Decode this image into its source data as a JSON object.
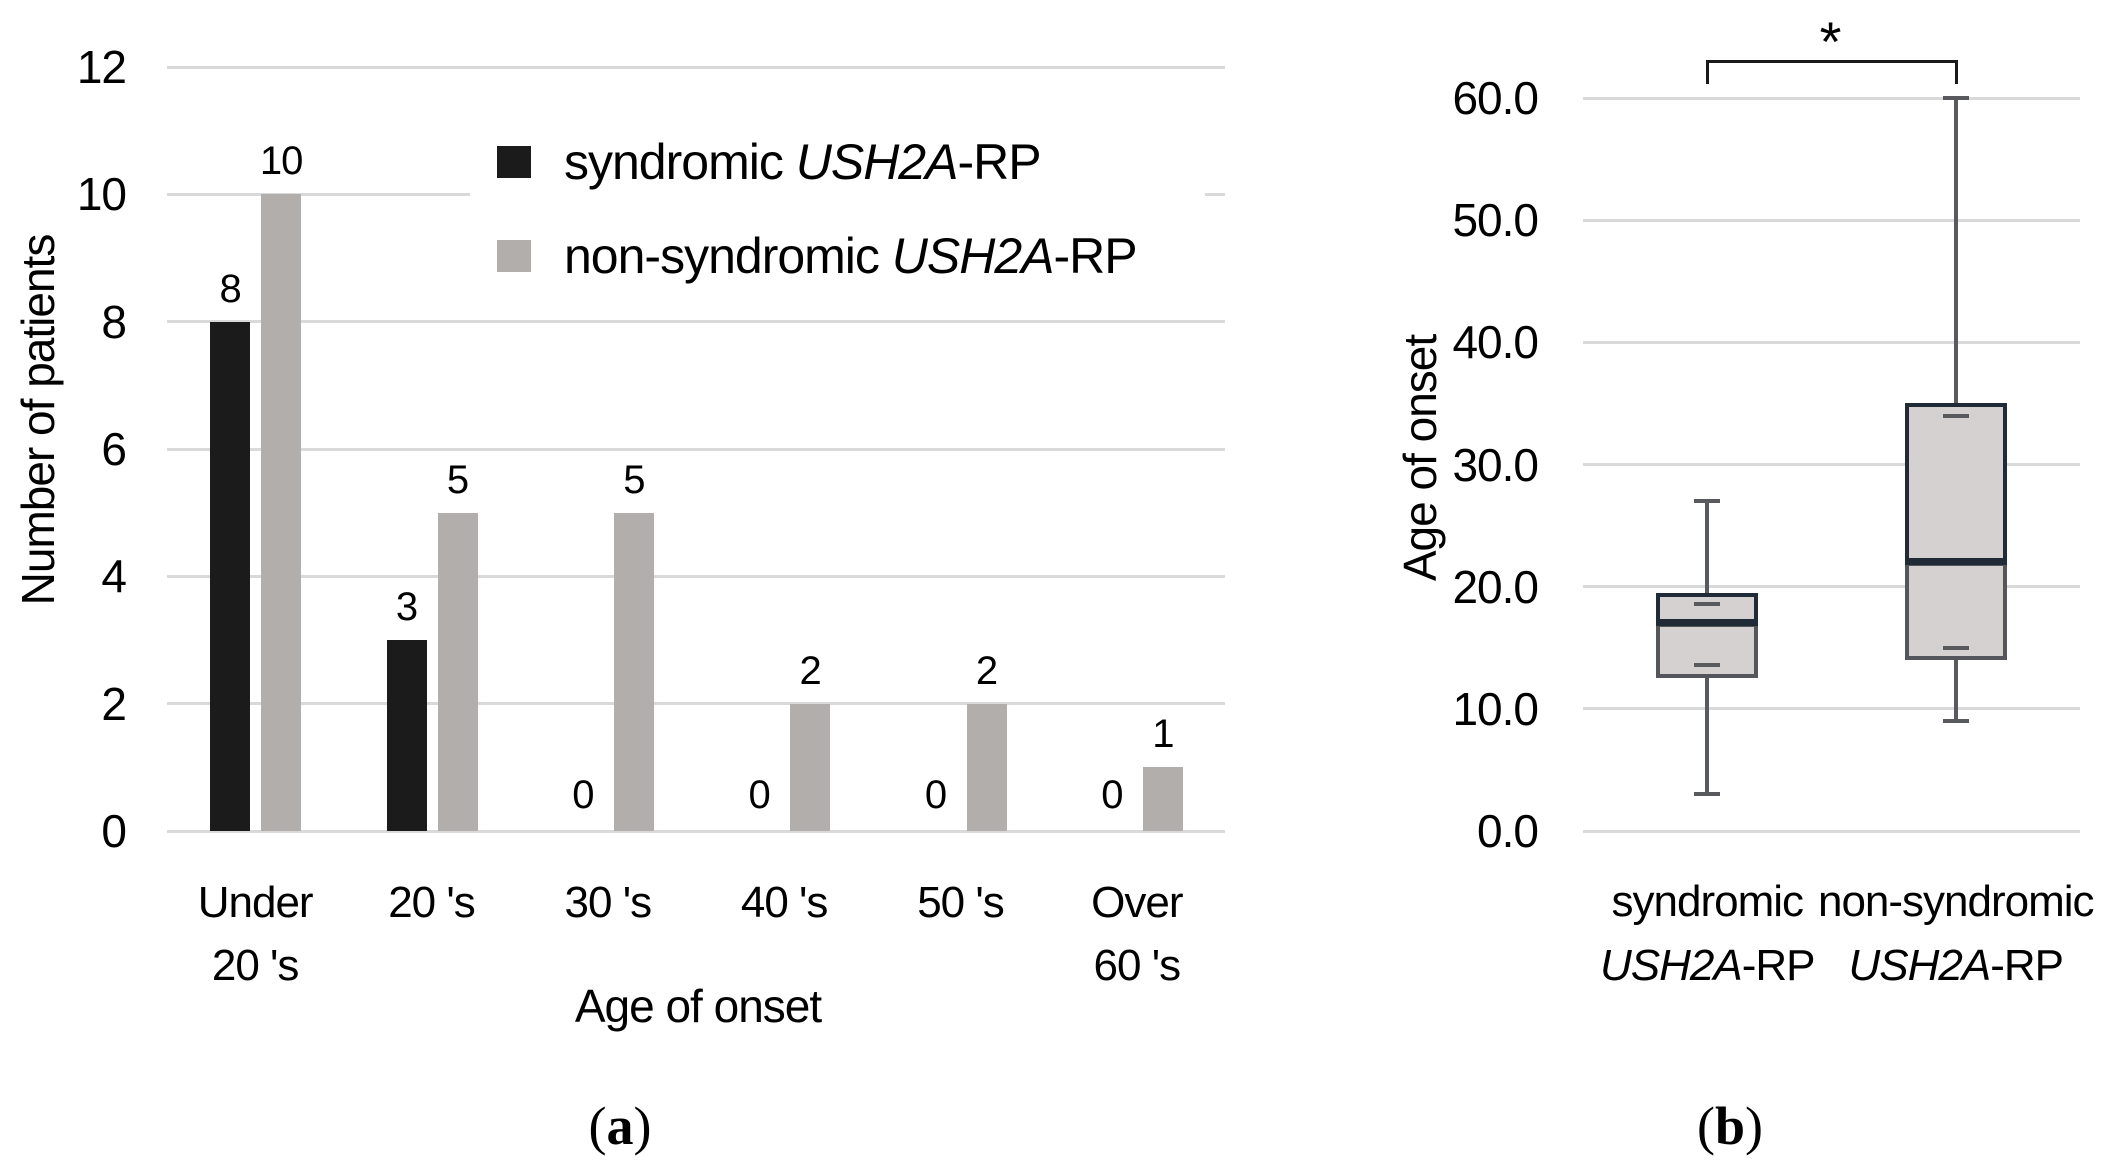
{
  "figure": {
    "panel_a_label": "(a)",
    "panel_b_label": "(b)",
    "background": "#ffffff",
    "gridline_color": "#d9d9d9",
    "text_color": "#000000"
  },
  "chart_data": [
    {
      "type": "bar",
      "panel": "a",
      "xlabel": "Age of onset",
      "ylabel": "Number of patients",
      "ylim": [
        0,
        12
      ],
      "ytick_step": 2,
      "yticks": [
        0,
        2,
        4,
        6,
        8,
        10,
        12
      ],
      "grid": true,
      "legend_position": "upper-right-inside",
      "categories": [
        "Under 20 's",
        "20 's",
        "30 's",
        "40 's",
        "50 's",
        "Over 60 's"
      ],
      "category_lines": [
        [
          "Under",
          "20 's"
        ],
        [
          "20 's"
        ],
        [
          "30 's"
        ],
        [
          "40 's"
        ],
        [
          "50 's"
        ],
        [
          "Over",
          "60 's"
        ]
      ],
      "series": [
        {
          "name": "syndromic USH2A-RP",
          "name_prefix": "syndromic ",
          "name_italic": "USH2A",
          "name_suffix": "-RP",
          "color": "#1b1b1b",
          "values": [
            8,
            3,
            0,
            0,
            0,
            0
          ]
        },
        {
          "name": "non-syndromic USH2A-RP",
          "name_prefix": "non-syndromic ",
          "name_italic": "USH2A",
          "name_suffix": "-RP",
          "color": "#b2aeac",
          "values": [
            10,
            5,
            5,
            2,
            2,
            1
          ]
        }
      ],
      "data_labels_shown": true
    },
    {
      "type": "boxplot",
      "panel": "b",
      "ylabel": "Age of onset",
      "ylim": [
        0,
        60
      ],
      "ytick_step": 10,
      "yticks": [
        "0.0",
        "10.0",
        "20.0",
        "30.0",
        "40.0",
        "50.0",
        "60.0"
      ],
      "grid": true,
      "categories": [
        "syndromic USH2A-RP",
        "non-syndromic USH2A-RP"
      ],
      "category_lines": [
        {
          "line1": "syndromic",
          "line2_italic": "USH2A",
          "line2_suffix": "-RP"
        },
        {
          "line1": "non-syndromic",
          "line2_italic": "USH2A",
          "line2_suffix": "-RP"
        }
      ],
      "boxes": [
        {
          "whisker_low": 3,
          "q1": 12.5,
          "median": 17,
          "q3": 19.5,
          "whisker_high": 27,
          "inner_cap_low": 13.6,
          "inner_cap_high": 18.6
        },
        {
          "whisker_low": 9,
          "q1": 14,
          "median": 22,
          "q3": 35,
          "whisker_high": 60,
          "inner_cap_low": 15,
          "inner_cap_high": 34
        }
      ],
      "box_fill": "#d4d1d0",
      "box_border_upper": "#212a37",
      "box_border_lower": "#55565b",
      "whisker_color": "#595a5e",
      "significance": {
        "label": "*",
        "between": [
          "syndromic USH2A-RP",
          "non-syndromic USH2A-RP"
        ]
      }
    }
  ]
}
